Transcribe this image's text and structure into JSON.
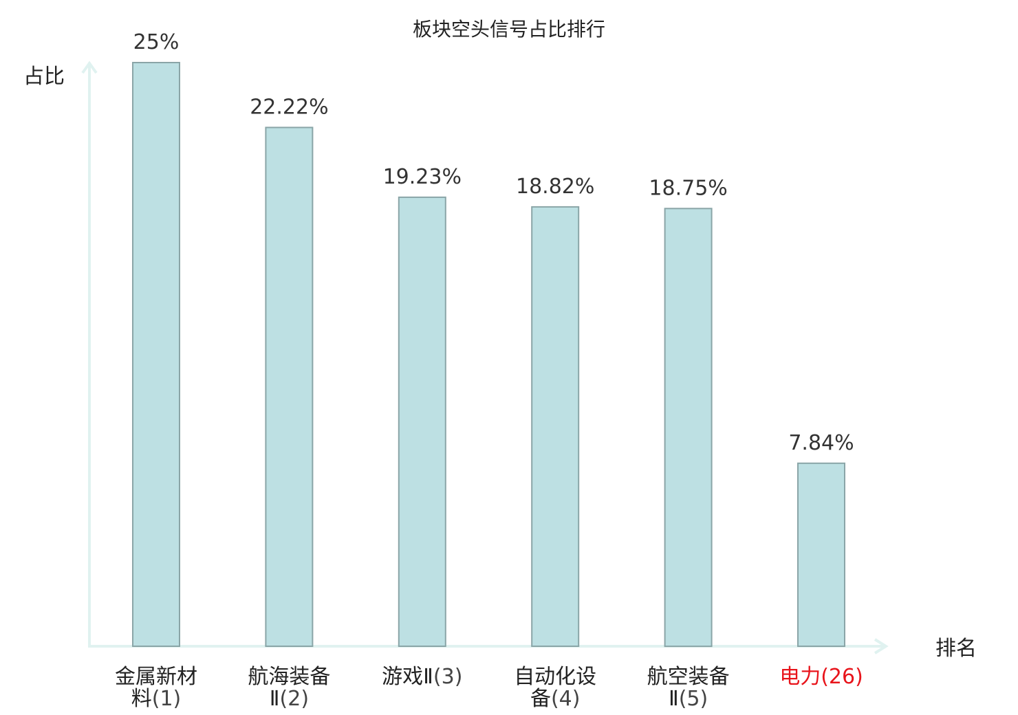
{
  "chart_data": {
    "type": "bar",
    "title": "板块空头信号占比排行",
    "ylabel": "占比",
    "xlabel": "排名",
    "categories": [
      {
        "lines": [
          "金属新材",
          "料"
        ],
        "rank": "(1)"
      },
      {
        "lines": [
          "航海装备",
          "Ⅱ"
        ],
        "rank": "(2)"
      },
      {
        "lines": [
          "游戏Ⅱ"
        ],
        "rank": "(3)"
      },
      {
        "lines": [
          "自动化设",
          "备"
        ],
        "rank": "(4)"
      },
      {
        "lines": [
          "航空装备",
          "Ⅱ"
        ],
        "rank": "(5)"
      },
      {
        "lines": [
          "电力"
        ],
        "rank": "(26)",
        "highlight": true
      }
    ],
    "values": [
      25,
      22.22,
      19.23,
      18.82,
      18.75,
      7.84
    ],
    "value_labels": [
      "25%",
      "22.22%",
      "19.23%",
      "18.82%",
      "18.75%",
      "7.84%"
    ],
    "ylim": [
      0,
      25
    ],
    "grid": false,
    "colors": {
      "bar_fill": "#bde0e3",
      "bar_stroke": "#8aa5a7",
      "axis": "#e0f2f0",
      "highlight": "#e8141b"
    }
  }
}
